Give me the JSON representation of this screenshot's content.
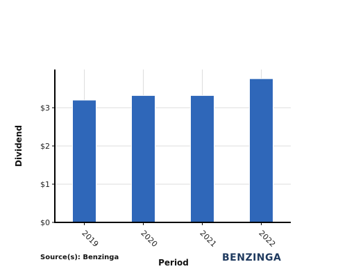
{
  "chart_data": {
    "type": "bar",
    "categories": [
      "2019",
      "2020",
      "2021",
      "2022"
    ],
    "values": [
      3.2,
      3.32,
      3.32,
      3.76
    ],
    "xlabel": "Period",
    "ylabel": "Dividend",
    "ylim": [
      0,
      4
    ],
    "yticks": [
      0,
      1,
      2,
      3
    ],
    "ytick_labels": [
      "$0",
      "$1",
      "$2",
      "$3"
    ],
    "grid": true,
    "bar_color": "#2f67b9",
    "grid_color": "#dddddd",
    "axis_color": "#000000"
  },
  "footer": {
    "source": "Source(s): Benzinga",
    "brand": "BENZINGA",
    "brand_color": "#1f3a5f"
  }
}
